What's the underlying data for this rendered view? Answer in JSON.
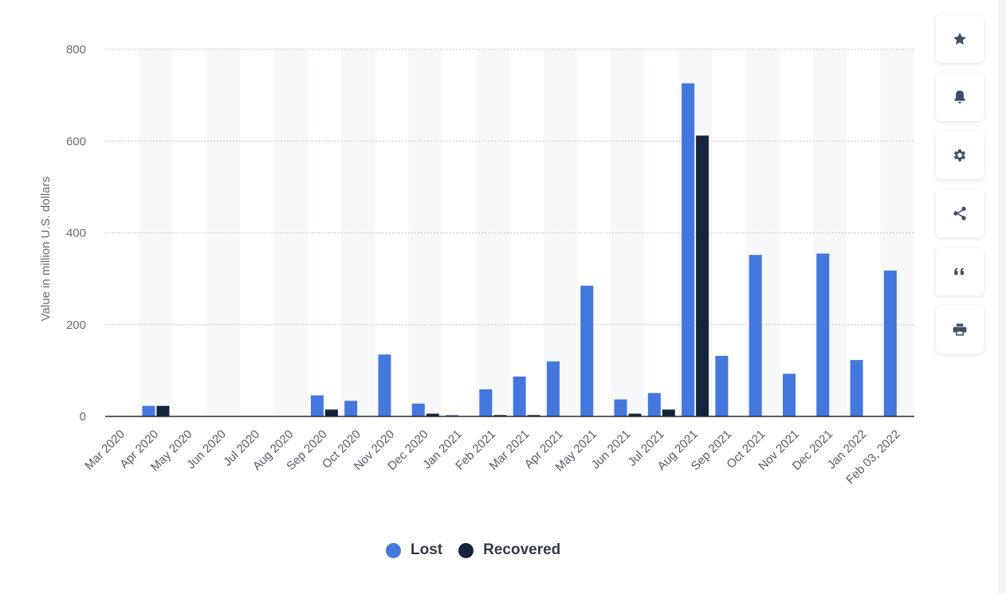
{
  "chart_data": {
    "type": "bar",
    "ylabel": "Value in million U.S. dollars",
    "ylim": [
      0,
      800
    ],
    "yticks": [
      "0",
      "200",
      "400",
      "600",
      "800"
    ],
    "grid": true,
    "legend_position": "bottom",
    "categories": [
      "Mar 2020",
      "Apr 2020",
      "May 2020",
      "Jun 2020",
      "Jul 2020",
      "Aug 2020",
      "Sep 2020",
      "Oct 2020",
      "Nov 2020",
      "Dec 2020",
      "Jan 2021",
      "Feb 2021",
      "Mar 2021",
      "Apr 2021",
      "May 2021",
      "Jun 2021",
      "Jul 2021",
      "Aug 2021",
      "Sep 2021",
      "Oct 2021",
      "Nov 2021",
      "Dec 2021",
      "Jan 2022",
      "Feb 03, 2022"
    ],
    "series": [
      {
        "name": "Lost",
        "color": "#4477dd",
        "values": [
          0,
          23,
          0,
          0,
          0,
          0,
          46,
          34,
          135,
          28,
          3,
          59,
          87,
          120,
          285,
          37,
          51,
          726,
          132,
          352,
          93,
          355,
          123,
          318
        ]
      },
      {
        "name": "Recovered",
        "color": "#14243d",
        "values": [
          0,
          23,
          0,
          0,
          0,
          0,
          15,
          0,
          0,
          6,
          0,
          3,
          3,
          0,
          0,
          6,
          15,
          612,
          0,
          0,
          0,
          0,
          0,
          0
        ]
      }
    ]
  },
  "toolbar": {
    "buttons": [
      {
        "icon": "star-icon"
      },
      {
        "icon": "bell-icon"
      },
      {
        "icon": "gear-icon"
      },
      {
        "icon": "share-icon"
      },
      {
        "icon": "quote-icon"
      },
      {
        "icon": "print-icon"
      }
    ]
  }
}
